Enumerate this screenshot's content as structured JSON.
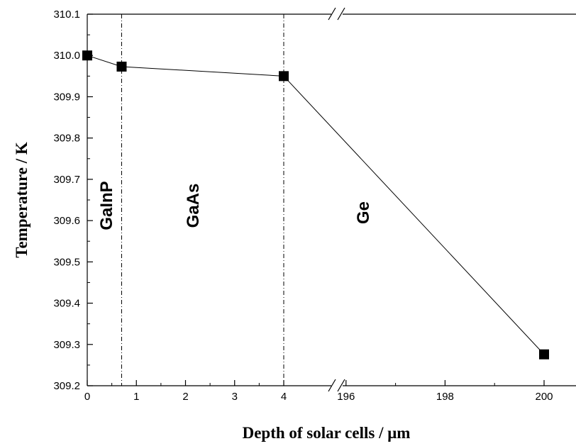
{
  "chart_data": {
    "type": "line",
    "title": "",
    "xlabel": "Depth of solar cells / μm",
    "ylabel": "Temperature / K",
    "ylim": [
      309.2,
      310.1
    ],
    "y_ticks": [
      "309.2",
      "309.3",
      "309.4",
      "309.5",
      "309.6",
      "309.7",
      "309.8",
      "309.9",
      "310.0",
      "310.1"
    ],
    "x_axis_broken": true,
    "x_segments": [
      {
        "range": [
          0,
          4
        ],
        "ticks": [
          "0",
          "1",
          "2",
          "3",
          "4"
        ]
      },
      {
        "range": [
          195,
          200
        ],
        "ticks": [
          "196",
          "198",
          "200"
        ]
      }
    ],
    "grid": false,
    "legend": "none",
    "series": [
      {
        "marker": "square",
        "color": "#000000",
        "points": [
          {
            "x": 0,
            "y": 310.0
          },
          {
            "x": 0.7,
            "y": 309.973
          },
          {
            "x": 4,
            "y": 309.95
          },
          {
            "x": 200,
            "y": 309.276
          }
        ]
      }
    ],
    "boundaries": [
      {
        "x": 0.7
      },
      {
        "x": 4
      }
    ],
    "region_labels": [
      {
        "text": "GaInP"
      },
      {
        "text": "GaAs"
      },
      {
        "text": "Ge"
      }
    ]
  }
}
